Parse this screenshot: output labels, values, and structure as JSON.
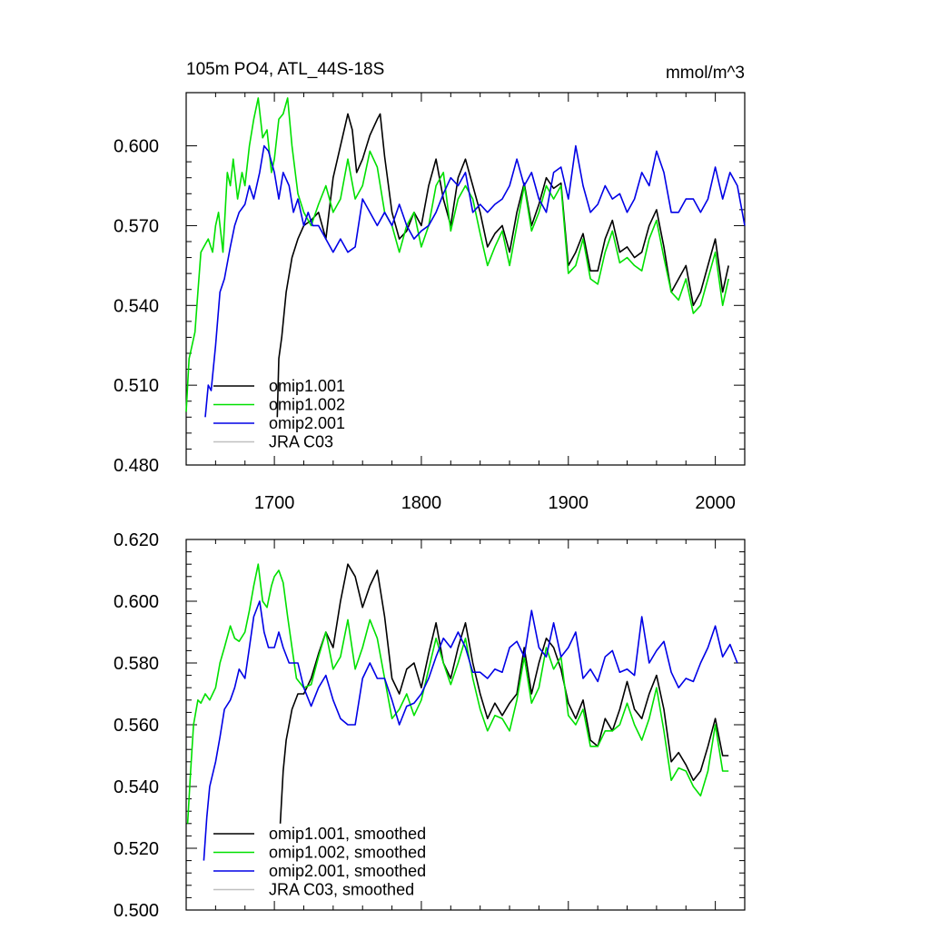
{
  "colors": {
    "omip1_001": "#000000",
    "omip1_002": "#00e000",
    "omip2_001": "#0000e6",
    "jra_c03": "#bfbfbf"
  },
  "chart_data": [
    {
      "type": "line",
      "title": "105m PO4, ATL_44S-18S",
      "units": "mmol/m^3",
      "xlim": [
        1640,
        2020
      ],
      "ylim": [
        0.48,
        0.62
      ],
      "xticks": [
        1700,
        1800,
        1900,
        2000
      ],
      "yticks": [
        0.48,
        0.51,
        0.54,
        0.57,
        0.6
      ],
      "ytick_labels": [
        "0.480",
        "0.510",
        "0.540",
        "0.570",
        "0.600"
      ],
      "legend_position": "bottom-left",
      "series": [
        {
          "name": "omip1.001",
          "color": "#000000",
          "x": [
            1702,
            1703,
            1705,
            1708,
            1712,
            1716,
            1720,
            1725,
            1730,
            1735,
            1740,
            1745,
            1750,
            1753,
            1756,
            1760,
            1765,
            1770,
            1772,
            1775,
            1780,
            1785,
            1790,
            1795,
            1800,
            1805,
            1810,
            1815,
            1820,
            1825,
            1830,
            1835,
            1840,
            1845,
            1850,
            1855,
            1860,
            1865,
            1870,
            1875,
            1880,
            1885,
            1890,
            1895,
            1900,
            1905,
            1910,
            1915,
            1920,
            1925,
            1930,
            1935,
            1940,
            1945,
            1950,
            1955,
            1960,
            1965,
            1970,
            1975,
            1980,
            1985,
            1990,
            1995,
            2000,
            2005,
            2009
          ],
          "y": [
            0.498,
            0.52,
            0.528,
            0.545,
            0.558,
            0.565,
            0.57,
            0.572,
            0.575,
            0.565,
            0.588,
            0.6,
            0.612,
            0.606,
            0.59,
            0.595,
            0.604,
            0.61,
            0.612,
            0.596,
            0.575,
            0.565,
            0.568,
            0.575,
            0.57,
            0.585,
            0.595,
            0.58,
            0.57,
            0.588,
            0.595,
            0.585,
            0.575,
            0.562,
            0.567,
            0.57,
            0.56,
            0.575,
            0.586,
            0.57,
            0.578,
            0.588,
            0.584,
            0.586,
            0.555,
            0.56,
            0.567,
            0.553,
            0.553,
            0.565,
            0.572,
            0.56,
            0.562,
            0.558,
            0.56,
            0.57,
            0.576,
            0.562,
            0.545,
            0.55,
            0.555,
            0.54,
            0.545,
            0.555,
            0.565,
            0.545,
            0.555
          ]
        },
        {
          "name": "omip1.002",
          "color": "#00e000",
          "x": [
            1640,
            1642,
            1644,
            1646,
            1648,
            1650,
            1652,
            1655,
            1658,
            1660,
            1662,
            1665,
            1668,
            1670,
            1672,
            1675,
            1678,
            1680,
            1683,
            1686,
            1689,
            1692,
            1695,
            1698,
            1700,
            1703,
            1706,
            1709,
            1712,
            1716,
            1720,
            1725,
            1730,
            1735,
            1740,
            1745,
            1750,
            1755,
            1760,
            1765,
            1770,
            1775,
            1780,
            1785,
            1790,
            1795,
            1800,
            1805,
            1810,
            1815,
            1820,
            1825,
            1830,
            1835,
            1840,
            1845,
            1850,
            1855,
            1860,
            1865,
            1870,
            1875,
            1880,
            1885,
            1890,
            1895,
            1900,
            1905,
            1910,
            1915,
            1920,
            1925,
            1930,
            1935,
            1940,
            1945,
            1950,
            1955,
            1960,
            1965,
            1970,
            1975,
            1980,
            1985,
            1990,
            1995,
            2000,
            2005,
            2009
          ],
          "y": [
            0.5,
            0.52,
            0.525,
            0.53,
            0.545,
            0.56,
            0.562,
            0.565,
            0.56,
            0.57,
            0.575,
            0.56,
            0.59,
            0.585,
            0.595,
            0.58,
            0.59,
            0.585,
            0.6,
            0.61,
            0.618,
            0.603,
            0.606,
            0.59,
            0.595,
            0.61,
            0.612,
            0.618,
            0.6,
            0.582,
            0.575,
            0.57,
            0.578,
            0.585,
            0.575,
            0.58,
            0.595,
            0.58,
            0.585,
            0.598,
            0.592,
            0.575,
            0.57,
            0.56,
            0.57,
            0.575,
            0.562,
            0.57,
            0.585,
            0.59,
            0.568,
            0.58,
            0.585,
            0.58,
            0.567,
            0.555,
            0.562,
            0.568,
            0.555,
            0.57,
            0.585,
            0.568,
            0.575,
            0.585,
            0.58,
            0.585,
            0.552,
            0.555,
            0.565,
            0.55,
            0.548,
            0.56,
            0.568,
            0.556,
            0.558,
            0.555,
            0.553,
            0.565,
            0.572,
            0.558,
            0.545,
            0.542,
            0.55,
            0.537,
            0.54,
            0.55,
            0.56,
            0.54,
            0.55
          ]
        },
        {
          "name": "omip2.001",
          "color": "#0000e6",
          "x": [
            1653,
            1655,
            1657,
            1660,
            1663,
            1666,
            1670,
            1673,
            1676,
            1680,
            1683,
            1686,
            1690,
            1693,
            1696,
            1700,
            1703,
            1706,
            1710,
            1713,
            1716,
            1720,
            1723,
            1726,
            1730,
            1735,
            1740,
            1745,
            1750,
            1755,
            1760,
            1765,
            1770,
            1775,
            1780,
            1785,
            1790,
            1795,
            1800,
            1805,
            1810,
            1815,
            1820,
            1825,
            1830,
            1835,
            1840,
            1845,
            1850,
            1855,
            1860,
            1865,
            1870,
            1875,
            1880,
            1885,
            1890,
            1895,
            1900,
            1905,
            1910,
            1915,
            1920,
            1925,
            1930,
            1935,
            1940,
            1945,
            1950,
            1955,
            1960,
            1965,
            1970,
            1975,
            1980,
            1985,
            1990,
            1995,
            2000,
            2005,
            2010,
            2015,
            2020
          ],
          "y": [
            0.498,
            0.51,
            0.508,
            0.525,
            0.545,
            0.55,
            0.562,
            0.57,
            0.575,
            0.578,
            0.585,
            0.58,
            0.59,
            0.6,
            0.598,
            0.59,
            0.58,
            0.59,
            0.585,
            0.575,
            0.58,
            0.57,
            0.575,
            0.57,
            0.57,
            0.565,
            0.56,
            0.565,
            0.56,
            0.562,
            0.58,
            0.575,
            0.57,
            0.575,
            0.57,
            0.578,
            0.57,
            0.565,
            0.568,
            0.57,
            0.575,
            0.582,
            0.588,
            0.585,
            0.59,
            0.575,
            0.578,
            0.575,
            0.578,
            0.58,
            0.585,
            0.595,
            0.585,
            0.59,
            0.58,
            0.575,
            0.59,
            0.592,
            0.58,
            0.6,
            0.585,
            0.575,
            0.578,
            0.585,
            0.58,
            0.582,
            0.575,
            0.58,
            0.59,
            0.585,
            0.598,
            0.59,
            0.575,
            0.575,
            0.58,
            0.58,
            0.575,
            0.58,
            0.592,
            0.58,
            0.59,
            0.585,
            0.57
          ]
        },
        {
          "name": "JRA C03",
          "color": "#bfbfbf",
          "x": [],
          "y": []
        }
      ]
    },
    {
      "type": "line",
      "title": "",
      "xlim": [
        1640,
        2020
      ],
      "ylim": [
        0.5,
        0.62
      ],
      "xticks": [
        1700,
        1800,
        1900,
        2000
      ],
      "yticks": [
        0.5,
        0.52,
        0.54,
        0.56,
        0.58,
        0.6,
        0.62
      ],
      "ytick_labels": [
        "0.500",
        "0.520",
        "0.540",
        "0.560",
        "0.580",
        "0.600",
        "0.620"
      ],
      "legend_position": "bottom-left",
      "series": [
        {
          "name": "omip1.001, smoothed",
          "color": "#000000",
          "x": [
            1704,
            1706,
            1708,
            1712,
            1716,
            1720,
            1725,
            1730,
            1735,
            1740,
            1745,
            1750,
            1755,
            1760,
            1765,
            1770,
            1775,
            1780,
            1785,
            1790,
            1795,
            1800,
            1805,
            1810,
            1815,
            1820,
            1825,
            1830,
            1835,
            1840,
            1845,
            1850,
            1855,
            1860,
            1865,
            1870,
            1875,
            1880,
            1885,
            1890,
            1895,
            1900,
            1905,
            1910,
            1915,
            1920,
            1925,
            1930,
            1935,
            1940,
            1945,
            1950,
            1955,
            1960,
            1965,
            1970,
            1975,
            1980,
            1985,
            1990,
            1995,
            2000,
            2005,
            2009
          ],
          "y": [
            0.528,
            0.545,
            0.555,
            0.565,
            0.57,
            0.57,
            0.575,
            0.583,
            0.59,
            0.585,
            0.6,
            0.612,
            0.608,
            0.598,
            0.605,
            0.61,
            0.595,
            0.575,
            0.57,
            0.578,
            0.58,
            0.572,
            0.583,
            0.593,
            0.58,
            0.575,
            0.585,
            0.593,
            0.58,
            0.57,
            0.562,
            0.567,
            0.563,
            0.567,
            0.57,
            0.585,
            0.57,
            0.58,
            0.588,
            0.585,
            0.578,
            0.567,
            0.562,
            0.568,
            0.555,
            0.553,
            0.562,
            0.558,
            0.565,
            0.574,
            0.565,
            0.562,
            0.57,
            0.576,
            0.565,
            0.548,
            0.551,
            0.547,
            0.542,
            0.545,
            0.553,
            0.562,
            0.55,
            0.55
          ]
        },
        {
          "name": "omip1.002, smoothed",
          "color": "#00e000",
          "x": [
            1641,
            1643,
            1645,
            1648,
            1650,
            1653,
            1656,
            1660,
            1663,
            1666,
            1670,
            1673,
            1676,
            1680,
            1683,
            1686,
            1689,
            1692,
            1695,
            1698,
            1700,
            1703,
            1706,
            1709,
            1712,
            1715,
            1720,
            1725,
            1730,
            1735,
            1740,
            1745,
            1750,
            1755,
            1760,
            1765,
            1770,
            1775,
            1780,
            1785,
            1790,
            1795,
            1800,
            1805,
            1810,
            1815,
            1820,
            1825,
            1830,
            1835,
            1840,
            1845,
            1850,
            1855,
            1860,
            1865,
            1870,
            1875,
            1880,
            1885,
            1890,
            1895,
            1900,
            1905,
            1910,
            1915,
            1920,
            1925,
            1930,
            1935,
            1940,
            1945,
            1950,
            1955,
            1960,
            1965,
            1970,
            1975,
            1980,
            1985,
            1990,
            1995,
            2000,
            2005,
            2009
          ],
          "y": [
            0.528,
            0.545,
            0.56,
            0.568,
            0.567,
            0.57,
            0.568,
            0.572,
            0.58,
            0.585,
            0.592,
            0.588,
            0.587,
            0.59,
            0.597,
            0.605,
            0.612,
            0.6,
            0.598,
            0.605,
            0.608,
            0.61,
            0.606,
            0.595,
            0.585,
            0.575,
            0.572,
            0.573,
            0.582,
            0.59,
            0.578,
            0.582,
            0.594,
            0.578,
            0.585,
            0.594,
            0.588,
            0.575,
            0.562,
            0.565,
            0.57,
            0.563,
            0.568,
            0.578,
            0.588,
            0.58,
            0.573,
            0.58,
            0.588,
            0.575,
            0.565,
            0.558,
            0.563,
            0.562,
            0.558,
            0.568,
            0.582,
            0.567,
            0.572,
            0.585,
            0.578,
            0.582,
            0.563,
            0.56,
            0.565,
            0.553,
            0.553,
            0.558,
            0.558,
            0.56,
            0.567,
            0.56,
            0.555,
            0.562,
            0.572,
            0.558,
            0.542,
            0.546,
            0.545,
            0.54,
            0.537,
            0.545,
            0.56,
            0.545,
            0.545
          ]
        },
        {
          "name": "omip2.001, smoothed",
          "color": "#0000e6",
          "x": [
            1652,
            1654,
            1656,
            1660,
            1663,
            1666,
            1670,
            1673,
            1676,
            1680,
            1683,
            1686,
            1690,
            1693,
            1696,
            1700,
            1703,
            1706,
            1710,
            1713,
            1716,
            1720,
            1725,
            1730,
            1735,
            1740,
            1745,
            1750,
            1755,
            1760,
            1765,
            1770,
            1775,
            1780,
            1785,
            1790,
            1795,
            1800,
            1805,
            1810,
            1815,
            1820,
            1825,
            1830,
            1835,
            1840,
            1845,
            1850,
            1855,
            1860,
            1865,
            1870,
            1875,
            1880,
            1885,
            1890,
            1895,
            1900,
            1905,
            1910,
            1915,
            1920,
            1925,
            1930,
            1935,
            1940,
            1945,
            1950,
            1955,
            1960,
            1965,
            1970,
            1975,
            1980,
            1985,
            1990,
            1995,
            2000,
            2005,
            2010,
            2015
          ],
          "y": [
            0.516,
            0.53,
            0.54,
            0.548,
            0.556,
            0.565,
            0.568,
            0.572,
            0.578,
            0.575,
            0.585,
            0.595,
            0.6,
            0.59,
            0.585,
            0.585,
            0.59,
            0.585,
            0.58,
            0.58,
            0.58,
            0.572,
            0.566,
            0.572,
            0.576,
            0.568,
            0.562,
            0.56,
            0.56,
            0.575,
            0.58,
            0.575,
            0.575,
            0.568,
            0.56,
            0.566,
            0.567,
            0.57,
            0.575,
            0.582,
            0.588,
            0.585,
            0.59,
            0.585,
            0.577,
            0.577,
            0.575,
            0.578,
            0.577,
            0.585,
            0.587,
            0.582,
            0.597,
            0.585,
            0.582,
            0.593,
            0.582,
            0.585,
            0.59,
            0.575,
            0.578,
            0.574,
            0.582,
            0.584,
            0.577,
            0.578,
            0.576,
            0.595,
            0.58,
            0.584,
            0.587,
            0.577,
            0.572,
            0.575,
            0.574,
            0.58,
            0.585,
            0.592,
            0.582,
            0.586,
            0.58
          ]
        },
        {
          "name": "JRA C03, smoothed",
          "color": "#bfbfbf",
          "x": [],
          "y": []
        }
      ]
    }
  ]
}
